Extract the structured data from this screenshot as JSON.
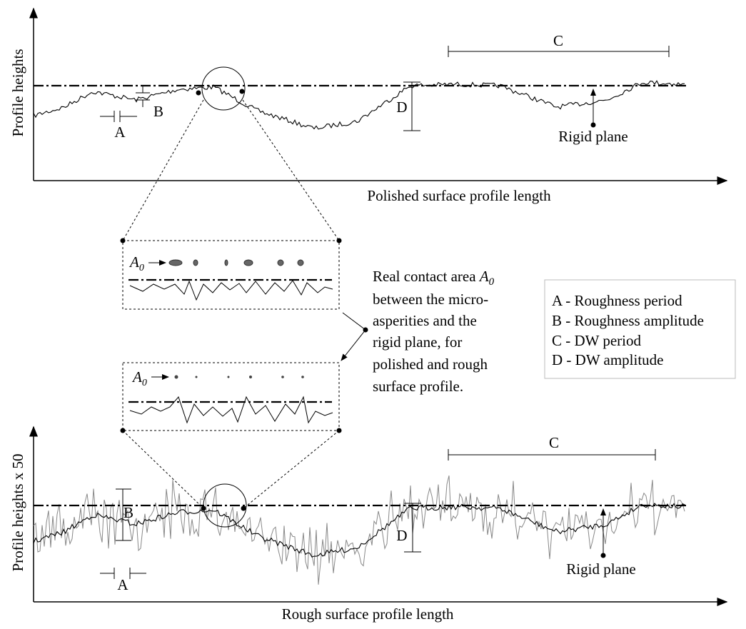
{
  "top_plot": {
    "y_label": "Profile heights",
    "x_label": "Polished surface profile length",
    "label_a": "A",
    "label_b": "B",
    "label_c": "C",
    "label_d": "D",
    "rigid_plane": "Rigid plane"
  },
  "insets": [
    {
      "symbol": "A",
      "subscript": "0"
    },
    {
      "symbol": "A",
      "subscript": "0"
    }
  ],
  "annotation": {
    "lines": [
      "Real contact area ",
      "between the micro-",
      "asperities and the",
      "rigid plane, for",
      "polished and rough",
      "surface profile."
    ],
    "symbol": "A",
    "subscript": "0"
  },
  "legend": {
    "items": [
      "A - Roughness period",
      "B - Roughness amplitude",
      "C - DW period",
      "D - DW amplitude"
    ]
  },
  "bottom_plot": {
    "y_label": "Profile heights x 50",
    "x_label": "Rough surface profile length",
    "label_a": "A",
    "label_b": "B",
    "label_c": "C",
    "label_d": "D",
    "rigid_plane": "Rigid plane"
  }
}
